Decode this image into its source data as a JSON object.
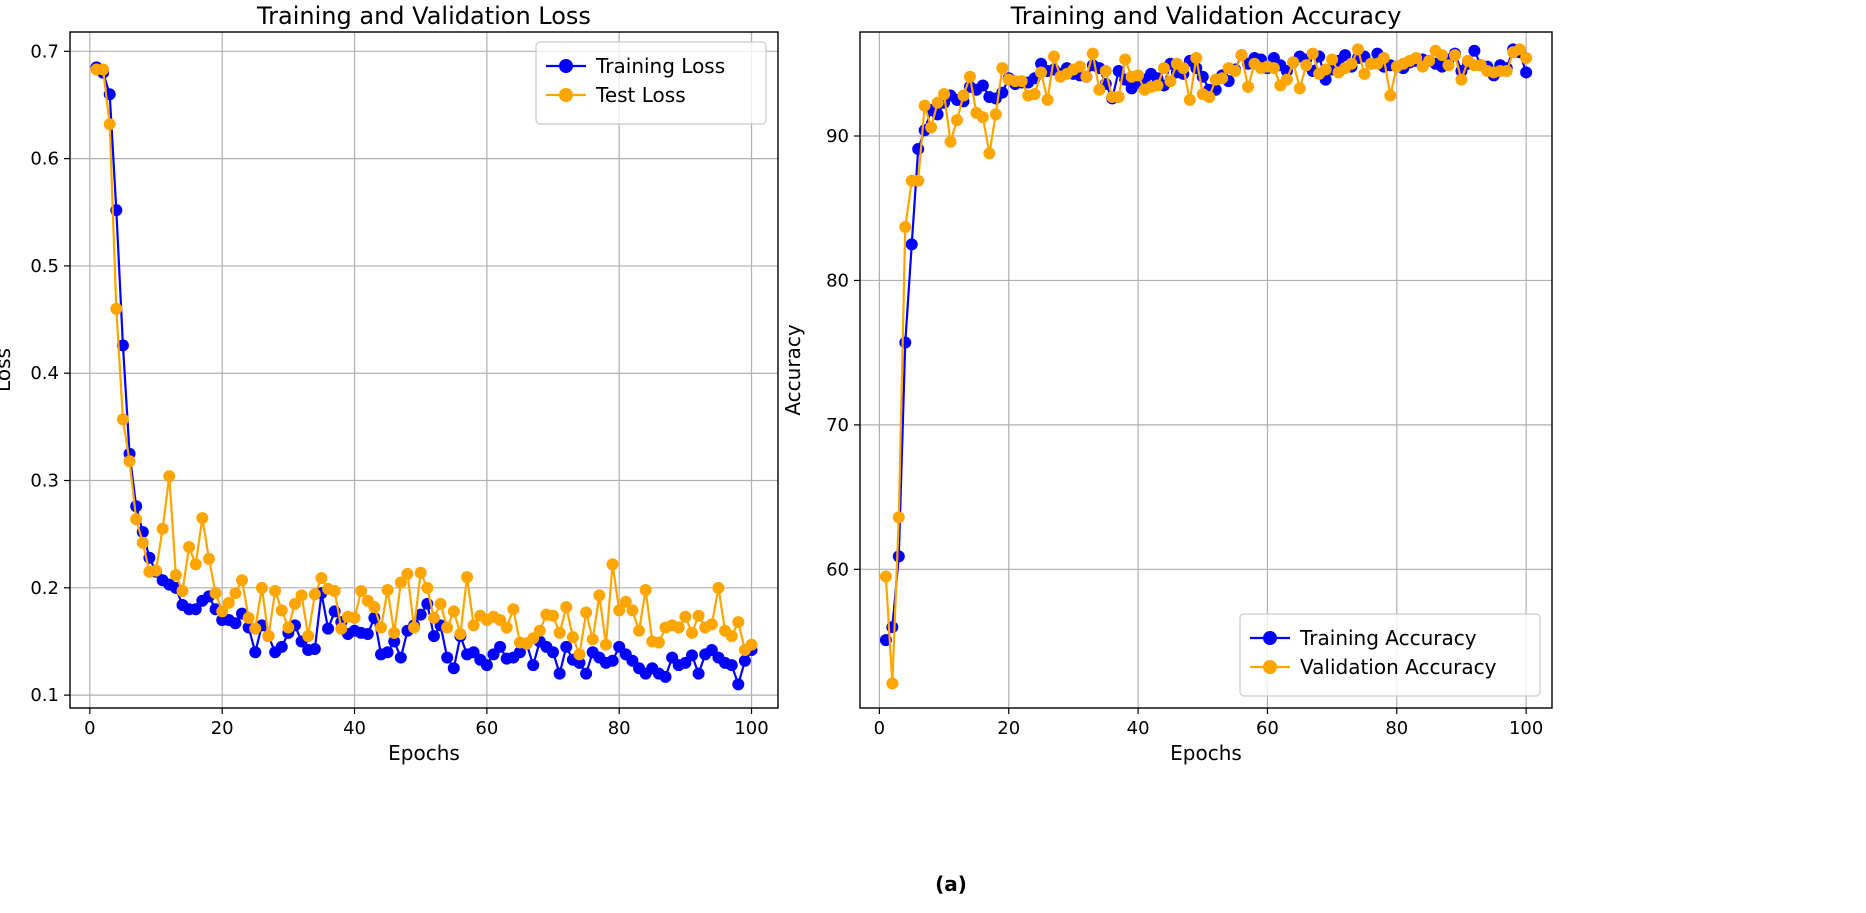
{
  "figure": {
    "panel_label": "(a)"
  },
  "colors": {
    "training": "#0000ff",
    "validation": "#ffa500",
    "grid": "#b0b0b0"
  },
  "chart_data": [
    {
      "type": "line",
      "title": "Training and Validation Loss",
      "xlabel": "Epochs",
      "ylabel": "Loss",
      "xlim": [
        -3,
        104
      ],
      "ylim": [
        0.088,
        0.718
      ],
      "xticks": [
        0,
        20,
        40,
        60,
        80,
        100
      ],
      "yticks": [
        0.1,
        0.2,
        0.3,
        0.4,
        0.5,
        0.6,
        0.7
      ],
      "ytick_labels": [
        "0.1",
        "0.2",
        "0.3",
        "0.4",
        "0.5",
        "0.6",
        "0.7"
      ],
      "legend_position": "upper-right",
      "x": [
        1,
        2,
        3,
        4,
        5,
        6,
        7,
        8,
        9,
        10,
        11,
        12,
        13,
        14,
        15,
        16,
        17,
        18,
        19,
        20,
        21,
        22,
        23,
        24,
        25,
        26,
        27,
        28,
        29,
        30,
        31,
        32,
        33,
        34,
        35,
        36,
        37,
        38,
        39,
        40,
        41,
        42,
        43,
        44,
        45,
        46,
        47,
        48,
        49,
        50,
        51,
        52,
        53,
        54,
        55,
        56,
        57,
        58,
        59,
        60,
        61,
        62,
        63,
        64,
        65,
        66,
        67,
        68,
        69,
        70,
        71,
        72,
        73,
        74,
        75,
        76,
        77,
        78,
        79,
        80,
        81,
        82,
        83,
        84,
        85,
        86,
        87,
        88,
        89,
        90,
        91,
        92,
        93,
        94,
        95,
        96,
        97,
        98,
        99,
        100
      ],
      "series": [
        {
          "name": "Training Loss",
          "color": "#0000ff",
          "values": [
            0.685,
            0.68,
            0.66,
            0.552,
            0.426,
            0.325,
            0.276,
            0.252,
            0.228,
            0.215,
            0.207,
            0.203,
            0.2,
            0.184,
            0.18,
            0.18,
            0.188,
            0.192,
            0.18,
            0.17,
            0.17,
            0.167,
            0.176,
            0.163,
            0.14,
            0.165,
            0.155,
            0.14,
            0.145,
            0.158,
            0.165,
            0.15,
            0.142,
            0.143,
            0.195,
            0.162,
            0.178,
            0.168,
            0.157,
            0.16,
            0.158,
            0.157,
            0.172,
            0.138,
            0.14,
            0.15,
            0.135,
            0.16,
            0.165,
            0.175,
            0.185,
            0.155,
            0.165,
            0.135,
            0.125,
            0.155,
            0.138,
            0.14,
            0.133,
            0.128,
            0.138,
            0.145,
            0.134,
            0.135,
            0.14,
            0.148,
            0.128,
            0.15,
            0.145,
            0.14,
            0.12,
            0.145,
            0.133,
            0.13,
            0.12,
            0.14,
            0.135,
            0.13,
            0.132,
            0.145,
            0.138,
            0.132,
            0.125,
            0.12,
            0.125,
            0.12,
            0.117,
            0.135,
            0.128,
            0.13,
            0.137,
            0.12,
            0.138,
            0.142,
            0.135,
            0.13,
            0.128,
            0.11,
            0.132,
            0.142
          ]
        },
        {
          "name": "Test Loss",
          "color": "#ffa500",
          "values": [
            0.683,
            0.683,
            0.632,
            0.46,
            0.357,
            0.318,
            0.264,
            0.242,
            0.215,
            0.216,
            0.255,
            0.304,
            0.212,
            0.197,
            0.238,
            0.222,
            0.265,
            0.227,
            0.195,
            0.178,
            0.186,
            0.195,
            0.207,
            0.172,
            0.162,
            0.2,
            0.155,
            0.197,
            0.179,
            0.163,
            0.185,
            0.193,
            0.155,
            0.194,
            0.209,
            0.199,
            0.197,
            0.162,
            0.173,
            0.172,
            0.197,
            0.188,
            0.182,
            0.163,
            0.198,
            0.158,
            0.205,
            0.213,
            0.163,
            0.214,
            0.2,
            0.172,
            0.185,
            0.163,
            0.178,
            0.157,
            0.21,
            0.165,
            0.174,
            0.17,
            0.173,
            0.17,
            0.163,
            0.18,
            0.149,
            0.148,
            0.153,
            0.16,
            0.175,
            0.174,
            0.158,
            0.182,
            0.154,
            0.138,
            0.177,
            0.152,
            0.193,
            0.147,
            0.222,
            0.179,
            0.187,
            0.179,
            0.16,
            0.198,
            0.15,
            0.149,
            0.163,
            0.165,
            0.163,
            0.173,
            0.158,
            0.174,
            0.163,
            0.166,
            0.2,
            0.16,
            0.155,
            0.168,
            0.142,
            0.147
          ]
        }
      ]
    },
    {
      "type": "line",
      "title": "Training and Validation Accuracy",
      "xlabel": "Epochs",
      "ylabel": "Accuracy",
      "xlim": [
        -3,
        104
      ],
      "ylim": [
        50.4,
        97.2
      ],
      "xticks": [
        0,
        20,
        40,
        60,
        80,
        100
      ],
      "yticks": [
        60,
        70,
        80,
        90
      ],
      "ytick_labels": [
        "60",
        "70",
        "80",
        "90"
      ],
      "legend_position": "lower-right",
      "x": [
        1,
        2,
        3,
        4,
        5,
        6,
        7,
        8,
        9,
        10,
        11,
        12,
        13,
        14,
        15,
        16,
        17,
        18,
        19,
        20,
        21,
        22,
        23,
        24,
        25,
        26,
        27,
        28,
        29,
        30,
        31,
        32,
        33,
        34,
        35,
        36,
        37,
        38,
        39,
        40,
        41,
        42,
        43,
        44,
        45,
        46,
        47,
        48,
        49,
        50,
        51,
        52,
        53,
        54,
        55,
        56,
        57,
        58,
        59,
        60,
        61,
        62,
        63,
        64,
        65,
        66,
        67,
        68,
        69,
        70,
        71,
        72,
        73,
        74,
        75,
        76,
        77,
        78,
        79,
        80,
        81,
        82,
        83,
        84,
        85,
        86,
        87,
        88,
        89,
        90,
        91,
        92,
        93,
        94,
        95,
        96,
        97,
        98,
        99,
        100
      ],
      "series": [
        {
          "name": "Training Accuracy",
          "color": "#0000ff",
          "values": [
            55.1,
            56.0,
            60.9,
            75.7,
            82.5,
            89.1,
            90.4,
            91.8,
            91.5,
            92.3,
            92.8,
            92.5,
            92.4,
            93.4,
            93.2,
            93.5,
            92.7,
            92.6,
            93.0,
            94.0,
            93.6,
            93.7,
            93.7,
            94.0,
            95.0,
            94.5,
            94.6,
            94.3,
            94.7,
            94.3,
            94.2,
            94.1,
            94.9,
            94.7,
            93.6,
            92.6,
            94.5,
            93.9,
            93.3,
            93.7,
            93.9,
            94.3,
            94.0,
            93.5,
            95.0,
            94.4,
            94.3,
            95.2,
            94.7,
            94.1,
            93.2,
            93.2,
            94.2,
            93.8,
            94.6,
            95.6,
            95.0,
            95.4,
            95.3,
            94.7,
            95.4,
            94.9,
            94.5,
            95.1,
            95.5,
            95.3,
            94.5,
            95.5,
            93.9,
            94.6,
            95.2,
            95.6,
            94.8,
            95.4,
            95.5,
            95.0,
            95.7,
            94.8,
            94.9,
            94.8,
            94.7,
            95.1,
            95.2,
            95.3,
            95.2,
            95.0,
            94.8,
            95.3,
            95.7,
            94.5,
            95.0,
            95.9,
            94.9,
            94.8,
            94.2,
            94.9,
            94.7,
            96.0,
            95.8,
            94.4
          ]
        },
        {
          "name": "Validation Accuracy",
          "color": "#ffa500",
          "values": [
            59.5,
            52.1,
            63.6,
            83.7,
            86.9,
            86.9,
            92.1,
            90.6,
            92.3,
            92.9,
            89.6,
            91.1,
            92.8,
            94.1,
            91.6,
            91.3,
            88.8,
            91.5,
            94.7,
            93.9,
            93.8,
            93.8,
            92.8,
            92.9,
            94.4,
            92.5,
            95.5,
            94.1,
            94.3,
            94.6,
            94.8,
            94.1,
            95.7,
            93.2,
            94.5,
            92.7,
            92.7,
            95.3,
            94.1,
            94.2,
            93.2,
            93.4,
            93.5,
            94.7,
            93.8,
            95.0,
            94.7,
            92.5,
            95.4,
            92.9,
            92.7,
            93.9,
            94.0,
            94.7,
            94.5,
            95.6,
            93.4,
            95.0,
            94.7,
            94.8,
            94.7,
            93.5,
            93.9,
            95.1,
            93.3,
            94.9,
            95.7,
            94.3,
            94.6,
            95.3,
            94.4,
            94.7,
            95.0,
            96.0,
            94.3,
            95.0,
            95.0,
            95.4,
            92.8,
            94.8,
            95.0,
            95.2,
            95.4,
            94.8,
            95.2,
            95.9,
            95.6,
            94.9,
            95.6,
            93.9,
            95.2,
            94.9,
            94.9,
            94.5,
            94.4,
            94.5,
            94.5,
            95.8,
            96.0,
            95.4
          ]
        }
      ]
    }
  ]
}
